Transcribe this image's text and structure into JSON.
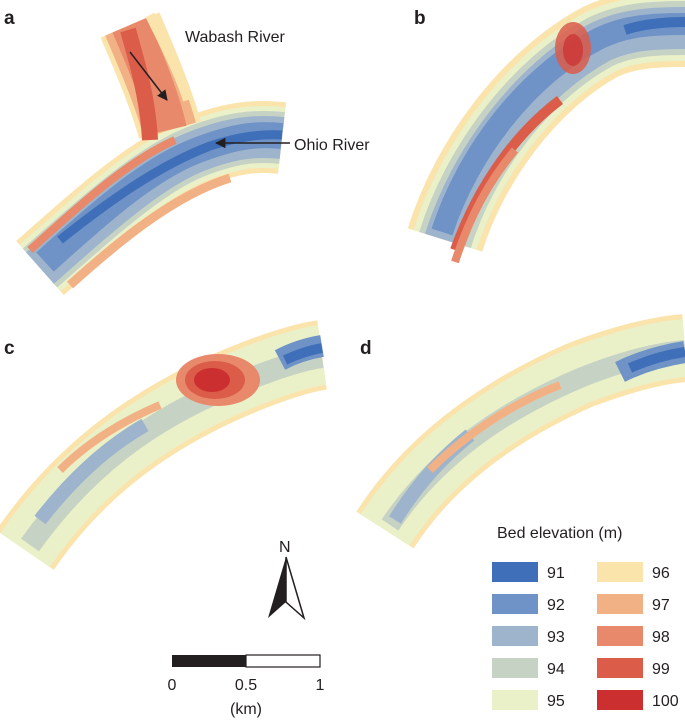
{
  "panels": [
    {
      "letter": "a"
    },
    {
      "letter": "b"
    },
    {
      "letter": "c"
    },
    {
      "letter": "d"
    }
  ],
  "annotations": {
    "wabash": "Wabash River",
    "ohio": "Ohio River"
  },
  "north_arrow": {
    "label": "N"
  },
  "scale_bar": {
    "ticks": [
      "0",
      "0.5",
      "1"
    ],
    "unit": "(km)"
  },
  "legend": {
    "title": "Bed elevation (m)",
    "items": [
      {
        "value": "91",
        "color": "#3e6fb8"
      },
      {
        "value": "92",
        "color": "#6f93c6"
      },
      {
        "value": "93",
        "color": "#9db4cc"
      },
      {
        "value": "94",
        "color": "#c6d3c4"
      },
      {
        "value": "95",
        "color": "#eaf0c8"
      },
      {
        "value": "96",
        "color": "#fbe3ac"
      },
      {
        "value": "97",
        "color": "#f2b184"
      },
      {
        "value": "98",
        "color": "#e8896b"
      },
      {
        "value": "99",
        "color": "#dc5c4a"
      },
      {
        "value": "100",
        "color": "#cc2f2f"
      }
    ]
  }
}
